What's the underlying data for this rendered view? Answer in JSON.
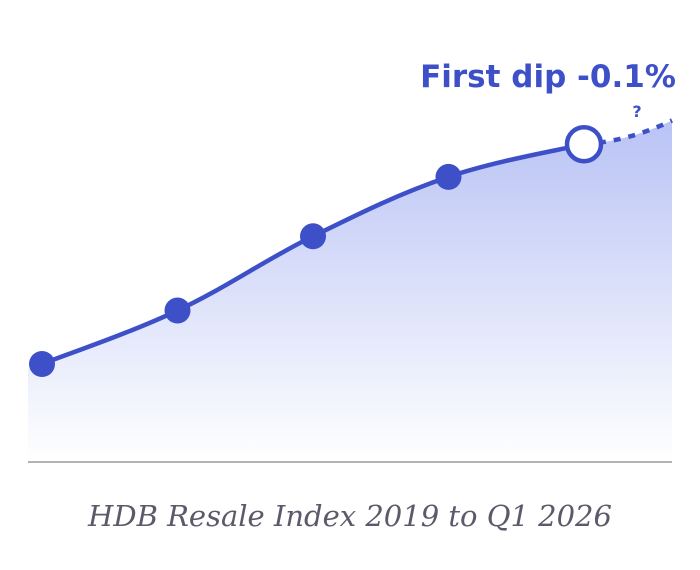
{
  "chart_data": {
    "type": "area",
    "title": "",
    "caption": "HDB Resale Index 2019 to Q1 2026",
    "xlabel": "",
    "ylabel": "",
    "grid": false,
    "legend": "none",
    "points": [
      {
        "y": 0.0
      },
      {
        "y": 0.18
      },
      {
        "y": 0.43
      },
      {
        "y": 0.63
      },
      {
        "y": 0.74
      }
    ],
    "projection": {
      "y": 0.82
    },
    "annotation": {
      "label": "First dip -0.1%",
      "question": "?"
    },
    "colors": {
      "line": "#3d50c8",
      "fill_top": "#b9c3f5",
      "fill_bottom": "#ffffff",
      "axis": "#9a9a9a",
      "caption": "#5a5a6a"
    }
  }
}
